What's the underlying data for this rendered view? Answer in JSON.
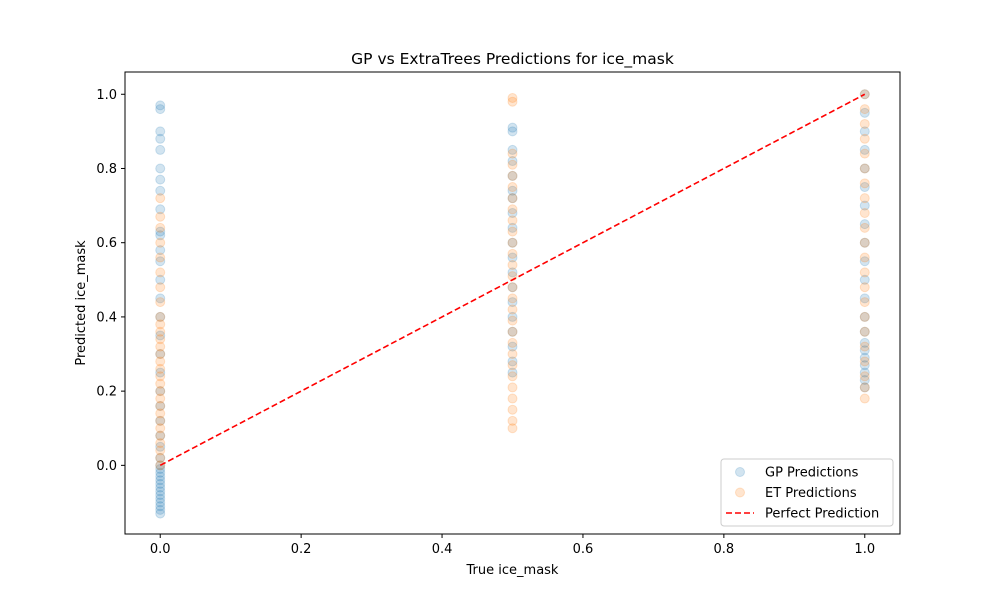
{
  "chart_data": {
    "type": "scatter",
    "title": "GP vs ExtraTrees Predictions for ice_mask",
    "xlabel": "True ice_mask",
    "ylabel": "Predicted ice_mask",
    "xlim": [
      -0.05,
      1.05
    ],
    "ylim": [
      -0.185,
      1.06
    ],
    "x_ticks": [
      0.0,
      0.2,
      0.4,
      0.6,
      0.8,
      1.0
    ],
    "y_ticks": [
      0.0,
      0.2,
      0.4,
      0.6,
      0.8,
      1.0
    ],
    "x_tick_labels": [
      "0.0",
      "0.2",
      "0.4",
      "0.6",
      "0.8",
      "1.0"
    ],
    "y_tick_labels": [
      "0.0",
      "0.2",
      "0.4",
      "0.6",
      "0.8",
      "1.0"
    ],
    "grid": false,
    "legend_position": "lower-right",
    "series": [
      {
        "name": "GP Predictions",
        "kind": "scatter",
        "color": "#1f77b4",
        "opacity": 0.2,
        "points": [
          [
            0.0,
            -0.13
          ],
          [
            0.0,
            -0.12
          ],
          [
            0.0,
            -0.11
          ],
          [
            0.0,
            -0.1
          ],
          [
            0.0,
            -0.09
          ],
          [
            0.0,
            -0.08
          ],
          [
            0.0,
            -0.07
          ],
          [
            0.0,
            -0.06
          ],
          [
            0.0,
            -0.05
          ],
          [
            0.0,
            -0.04
          ],
          [
            0.0,
            -0.03
          ],
          [
            0.0,
            -0.02
          ],
          [
            0.0,
            -0.01
          ],
          [
            0.0,
            0.0
          ],
          [
            0.0,
            0.02
          ],
          [
            0.0,
            0.05
          ],
          [
            0.0,
            0.08
          ],
          [
            0.0,
            0.12
          ],
          [
            0.0,
            0.16
          ],
          [
            0.0,
            0.2
          ],
          [
            0.0,
            0.25
          ],
          [
            0.0,
            0.3
          ],
          [
            0.0,
            0.35
          ],
          [
            0.0,
            0.4
          ],
          [
            0.0,
            0.45
          ],
          [
            0.0,
            0.5
          ],
          [
            0.0,
            0.55
          ],
          [
            0.0,
            0.58
          ],
          [
            0.0,
            0.62
          ],
          [
            0.0,
            0.63
          ],
          [
            0.0,
            0.69
          ],
          [
            0.0,
            0.74
          ],
          [
            0.0,
            0.77
          ],
          [
            0.0,
            0.8
          ],
          [
            0.0,
            0.85
          ],
          [
            0.0,
            0.88
          ],
          [
            0.0,
            0.9
          ],
          [
            0.0,
            0.96
          ],
          [
            0.0,
            0.97
          ],
          [
            0.5,
            0.25
          ],
          [
            0.5,
            0.28
          ],
          [
            0.5,
            0.32
          ],
          [
            0.5,
            0.36
          ],
          [
            0.5,
            0.4
          ],
          [
            0.5,
            0.44
          ],
          [
            0.5,
            0.48
          ],
          [
            0.5,
            0.52
          ],
          [
            0.5,
            0.56
          ],
          [
            0.5,
            0.6
          ],
          [
            0.5,
            0.64
          ],
          [
            0.5,
            0.68
          ],
          [
            0.5,
            0.72
          ],
          [
            0.5,
            0.74
          ],
          [
            0.5,
            0.78
          ],
          [
            0.5,
            0.82
          ],
          [
            0.5,
            0.85
          ],
          [
            0.5,
            0.9
          ],
          [
            0.5,
            0.91
          ],
          [
            1.0,
            0.21
          ],
          [
            1.0,
            0.23
          ],
          [
            1.0,
            0.25
          ],
          [
            1.0,
            0.27
          ],
          [
            1.0,
            0.29
          ],
          [
            1.0,
            0.31
          ],
          [
            1.0,
            0.33
          ],
          [
            1.0,
            0.36
          ],
          [
            1.0,
            0.4
          ],
          [
            1.0,
            0.45
          ],
          [
            1.0,
            0.5
          ],
          [
            1.0,
            0.55
          ],
          [
            1.0,
            0.6
          ],
          [
            1.0,
            0.65
          ],
          [
            1.0,
            0.7
          ],
          [
            1.0,
            0.75
          ],
          [
            1.0,
            0.8
          ],
          [
            1.0,
            0.85
          ],
          [
            1.0,
            0.9
          ],
          [
            1.0,
            0.95
          ],
          [
            1.0,
            1.0
          ]
        ]
      },
      {
        "name": "ET Predictions",
        "kind": "scatter",
        "color": "#ff7f0e",
        "opacity": 0.2,
        "points": [
          [
            0.0,
            0.0
          ],
          [
            0.0,
            0.02
          ],
          [
            0.0,
            0.04
          ],
          [
            0.0,
            0.06
          ],
          [
            0.0,
            0.08
          ],
          [
            0.0,
            0.1
          ],
          [
            0.0,
            0.12
          ],
          [
            0.0,
            0.14
          ],
          [
            0.0,
            0.16
          ],
          [
            0.0,
            0.18
          ],
          [
            0.0,
            0.2
          ],
          [
            0.0,
            0.22
          ],
          [
            0.0,
            0.24
          ],
          [
            0.0,
            0.26
          ],
          [
            0.0,
            0.28
          ],
          [
            0.0,
            0.3
          ],
          [
            0.0,
            0.32
          ],
          [
            0.0,
            0.34
          ],
          [
            0.0,
            0.36
          ],
          [
            0.0,
            0.38
          ],
          [
            0.0,
            0.4
          ],
          [
            0.0,
            0.44
          ],
          [
            0.0,
            0.48
          ],
          [
            0.0,
            0.52
          ],
          [
            0.0,
            0.56
          ],
          [
            0.0,
            0.6
          ],
          [
            0.0,
            0.64
          ],
          [
            0.0,
            0.67
          ],
          [
            0.0,
            0.72
          ],
          [
            0.5,
            0.1
          ],
          [
            0.5,
            0.12
          ],
          [
            0.5,
            0.15
          ],
          [
            0.5,
            0.18
          ],
          [
            0.5,
            0.21
          ],
          [
            0.5,
            0.24
          ],
          [
            0.5,
            0.27
          ],
          [
            0.5,
            0.3
          ],
          [
            0.5,
            0.33
          ],
          [
            0.5,
            0.36
          ],
          [
            0.5,
            0.39
          ],
          [
            0.5,
            0.42
          ],
          [
            0.5,
            0.45
          ],
          [
            0.5,
            0.48
          ],
          [
            0.5,
            0.51
          ],
          [
            0.5,
            0.54
          ],
          [
            0.5,
            0.57
          ],
          [
            0.5,
            0.6
          ],
          [
            0.5,
            0.63
          ],
          [
            0.5,
            0.66
          ],
          [
            0.5,
            0.69
          ],
          [
            0.5,
            0.72
          ],
          [
            0.5,
            0.75
          ],
          [
            0.5,
            0.78
          ],
          [
            0.5,
            0.81
          ],
          [
            0.5,
            0.84
          ],
          [
            0.5,
            0.98
          ],
          [
            0.5,
            0.99
          ],
          [
            1.0,
            0.18
          ],
          [
            1.0,
            0.21
          ],
          [
            1.0,
            0.24
          ],
          [
            1.0,
            0.28
          ],
          [
            1.0,
            0.32
          ],
          [
            1.0,
            0.36
          ],
          [
            1.0,
            0.4
          ],
          [
            1.0,
            0.44
          ],
          [
            1.0,
            0.48
          ],
          [
            1.0,
            0.52
          ],
          [
            1.0,
            0.56
          ],
          [
            1.0,
            0.6
          ],
          [
            1.0,
            0.64
          ],
          [
            1.0,
            0.68
          ],
          [
            1.0,
            0.72
          ],
          [
            1.0,
            0.76
          ],
          [
            1.0,
            0.8
          ],
          [
            1.0,
            0.84
          ],
          [
            1.0,
            0.88
          ],
          [
            1.0,
            0.92
          ],
          [
            1.0,
            0.96
          ],
          [
            1.0,
            1.0
          ]
        ]
      },
      {
        "name": "Perfect Prediction",
        "kind": "line",
        "color": "#ff0000",
        "dashed": true,
        "points": [
          [
            0.0,
            0.0
          ],
          [
            1.0,
            1.0
          ]
        ]
      }
    ]
  }
}
